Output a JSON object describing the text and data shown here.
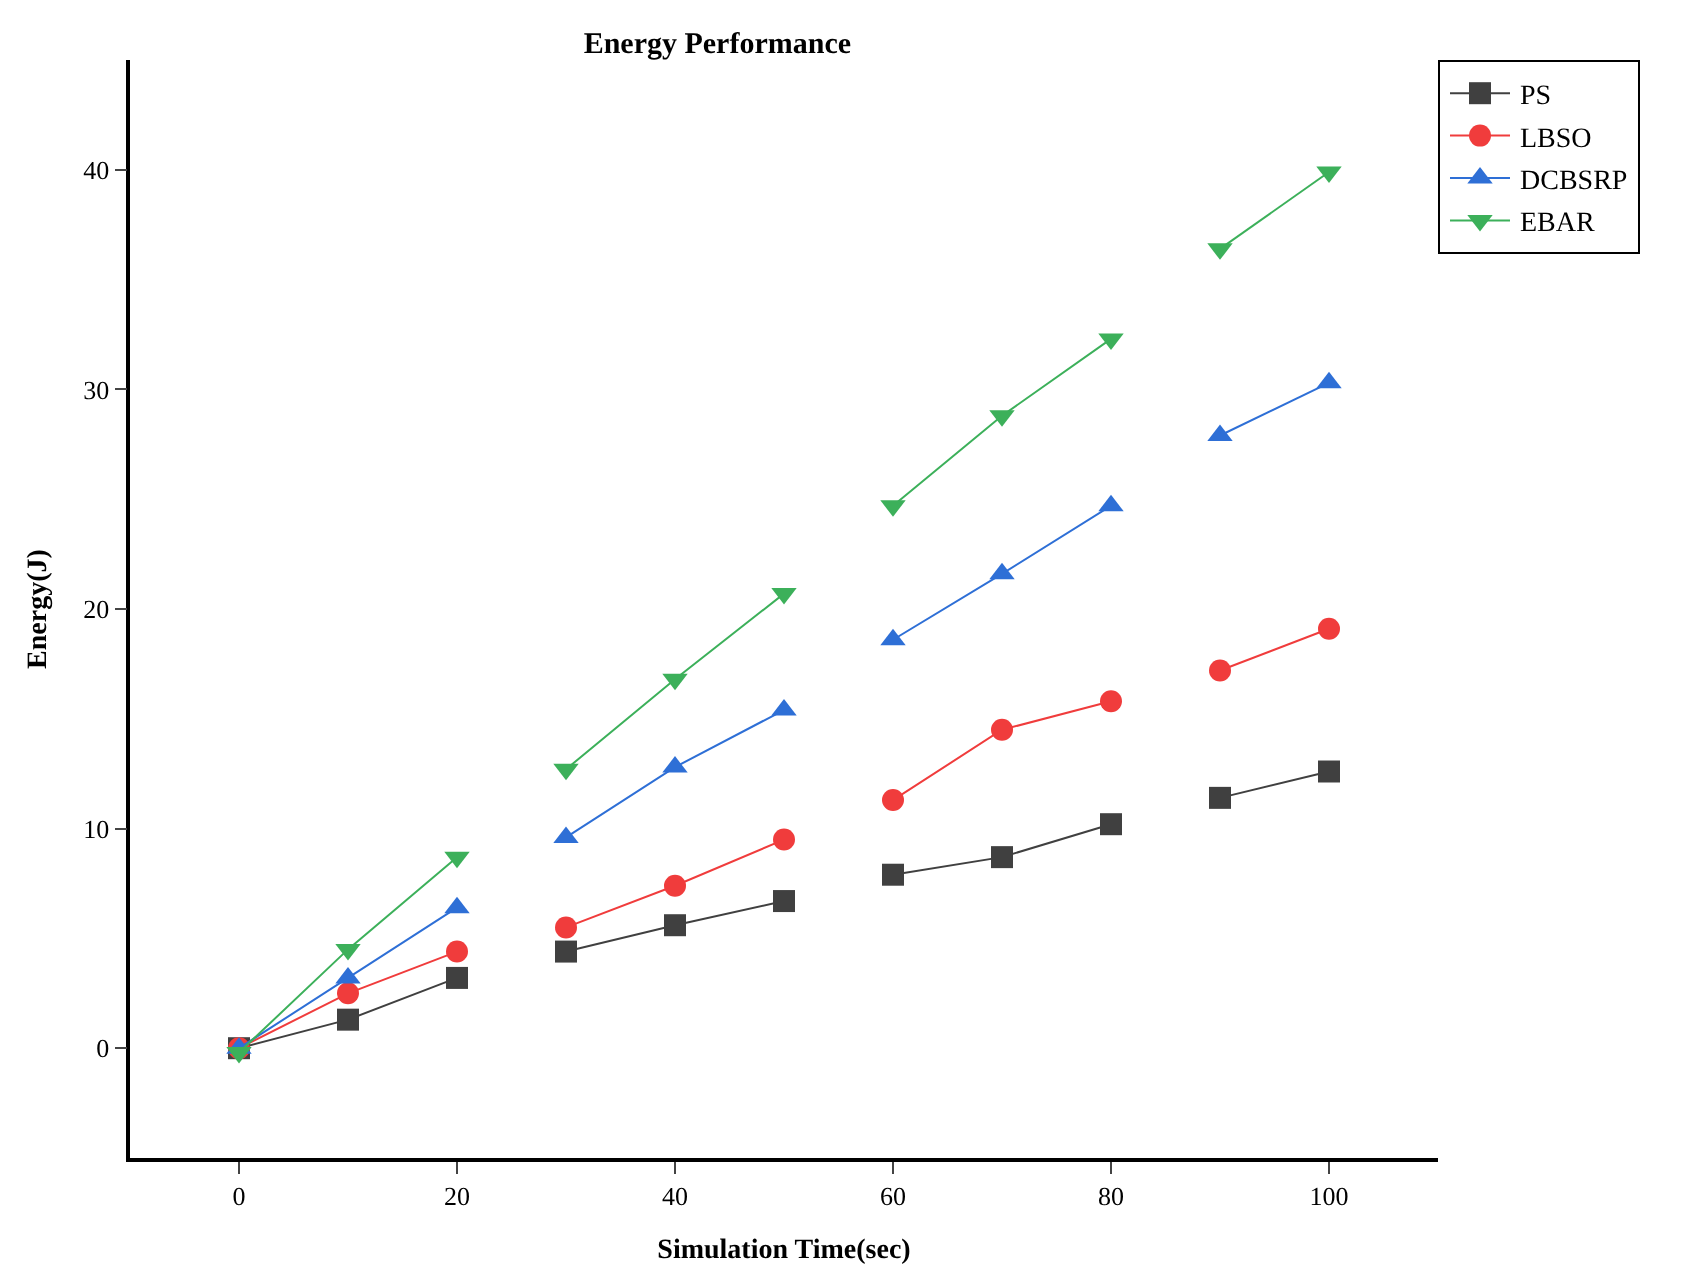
{
  "chart_data": {
    "type": "line",
    "title": "Energy Performance",
    "xlabel": "Simulation Time(sec)",
    "ylabel": "Energy(J)",
    "x": [
      0,
      10,
      20,
      25,
      30,
      40,
      50,
      55,
      60,
      70,
      80,
      85,
      90,
      100
    ],
    "series": [
      {
        "name": "PS",
        "color": "#404040",
        "marker": "square",
        "values": [
          0,
          1.3,
          3.2,
          null,
          4.4,
          5.6,
          6.7,
          null,
          7.9,
          8.7,
          10.2,
          null,
          11.4,
          12.6
        ]
      },
      {
        "name": "LBSO",
        "color": "#f03c3c",
        "marker": "circle",
        "values": [
          0,
          2.5,
          4.4,
          null,
          5.5,
          7.4,
          9.5,
          null,
          11.3,
          14.5,
          15.8,
          null,
          17.2,
          19.1
        ]
      },
      {
        "name": "DCBSRP",
        "color": "#2e6fd6",
        "marker": "triangle",
        "values": [
          0,
          3.2,
          6.4,
          null,
          9.6,
          12.8,
          15.4,
          null,
          18.6,
          21.6,
          24.7,
          null,
          27.9,
          30.3
        ]
      },
      {
        "name": "EBAR",
        "color": "#3cb05a",
        "marker": "triangle-down",
        "values": [
          -0.2,
          4.5,
          8.7,
          null,
          12.7,
          16.8,
          20.7,
          null,
          24.7,
          28.8,
          32.3,
          null,
          36.4,
          39.9
        ]
      }
    ],
    "xlim": [
      -10,
      110
    ],
    "xticks": [
      0,
      20,
      40,
      60,
      80,
      100
    ],
    "ylim": [
      -5,
      45
    ],
    "yticks": [
      0,
      10,
      20,
      30,
      40
    ],
    "grid": false,
    "legend": "top right",
    "line_style": "solid"
  }
}
